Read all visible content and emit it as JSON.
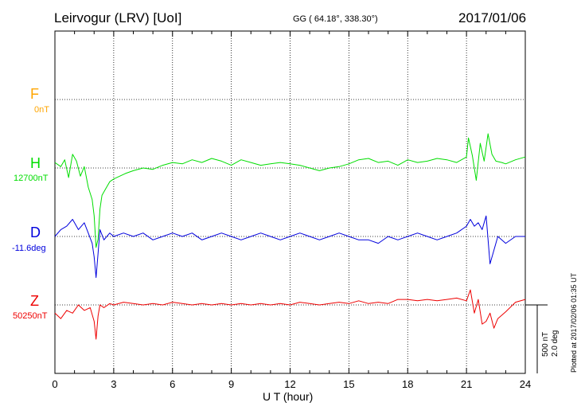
{
  "header": {
    "station": "Leirvogur (LRV)  [UoI]",
    "coords": "GG ( 64.18°, 338.30°)",
    "date": "2017/01/06"
  },
  "plotted_note": "Plotted at 2017/02/06 01:35 UT",
  "scale": {
    "nt": "500 nT",
    "deg": "2.0 deg"
  },
  "colors": {
    "F": "#ffa500",
    "H": "#00dd00",
    "D": "#0000dd",
    "Z": "#ee0000",
    "grid": "#000000"
  },
  "chart_data": {
    "type": "line",
    "title": "Leirvogur (LRV)  [UoI]",
    "xlabel": "U T (hour)",
    "xlim": [
      0,
      24
    ],
    "xticks": [
      "0",
      "3",
      "6",
      "9",
      "12",
      "15",
      "18",
      "21",
      "24"
    ],
    "grid": true,
    "series": [
      {
        "name": "F",
        "baseline_label": "0nT",
        "x": [],
        "y": []
      },
      {
        "name": "H",
        "baseline_label": "12700nT",
        "x": [
          0,
          0.3,
          0.5,
          0.7,
          0.9,
          1.1,
          1.3,
          1.5,
          1.7,
          1.9,
          2.0,
          2.1,
          2.2,
          2.3,
          2.4,
          2.6,
          2.8,
          3.0,
          3.3,
          3.6,
          4.0,
          4.5,
          5.0,
          5.5,
          6.0,
          6.5,
          7.0,
          7.5,
          8.0,
          8.5,
          9.0,
          9.5,
          10.0,
          10.5,
          11.0,
          11.5,
          12.0,
          12.5,
          13.0,
          13.5,
          14.0,
          14.5,
          15.0,
          15.5,
          16.0,
          16.5,
          17.0,
          17.5,
          18.0,
          18.5,
          19.0,
          19.5,
          20.0,
          20.5,
          21.0,
          21.1,
          21.3,
          21.5,
          21.7,
          21.9,
          22.1,
          22.3,
          22.5,
          22.8,
          23.0,
          23.5,
          24.0
        ],
        "y": [
          40,
          10,
          60,
          -70,
          100,
          50,
          -60,
          10,
          -140,
          -230,
          -350,
          -580,
          -520,
          -300,
          -200,
          -150,
          -100,
          -80,
          -60,
          -40,
          -20,
          0,
          -10,
          20,
          40,
          30,
          60,
          40,
          70,
          50,
          20,
          60,
          40,
          20,
          30,
          40,
          30,
          20,
          0,
          -20,
          0,
          10,
          30,
          60,
          70,
          40,
          50,
          20,
          60,
          40,
          50,
          70,
          60,
          40,
          80,
          220,
          90,
          -90,
          180,
          50,
          250,
          100,
          50,
          40,
          30,
          60,
          80
        ]
      },
      {
        "name": "D",
        "baseline_label": "-11.6deg",
        "x": [
          0,
          0.3,
          0.6,
          0.9,
          1.2,
          1.5,
          1.7,
          1.9,
          2.0,
          2.1,
          2.2,
          2.3,
          2.5,
          2.8,
          3.0,
          3.5,
          4.0,
          4.5,
          5.0,
          5.5,
          6.0,
          6.5,
          7.0,
          7.5,
          8.0,
          8.5,
          9.0,
          9.5,
          10.0,
          10.5,
          11.0,
          11.5,
          12.0,
          12.5,
          13.0,
          13.5,
          14.0,
          14.5,
          15.0,
          15.5,
          16.0,
          16.5,
          17.0,
          17.5,
          18.0,
          18.5,
          19.0,
          19.5,
          20.0,
          20.5,
          21.0,
          21.2,
          21.4,
          21.6,
          21.8,
          22.0,
          22.2,
          22.4,
          22.6,
          23.0,
          23.5,
          24.0
        ],
        "y": [
          0.0,
          0.2,
          0.3,
          0.5,
          0.2,
          0.4,
          0.1,
          -0.2,
          -0.6,
          -1.2,
          -0.5,
          0.2,
          -0.1,
          0.1,
          0.0,
          0.1,
          0.0,
          0.1,
          -0.1,
          0.0,
          0.1,
          0.0,
          0.1,
          -0.1,
          0.0,
          0.1,
          0.0,
          -0.1,
          0.0,
          0.1,
          0.0,
          -0.1,
          0.0,
          0.1,
          0.0,
          -0.1,
          0.0,
          0.1,
          0.0,
          -0.1,
          -0.1,
          -0.2,
          0.0,
          -0.1,
          0.0,
          0.1,
          0.0,
          -0.1,
          0.0,
          0.1,
          0.3,
          0.5,
          0.3,
          0.4,
          0.2,
          0.6,
          -0.8,
          -0.4,
          0.0,
          -0.2,
          0.0,
          0.0
        ]
      },
      {
        "name": "Z",
        "baseline_label": "50250nT",
        "x": [
          0,
          0.3,
          0.6,
          0.9,
          1.2,
          1.5,
          1.8,
          2.0,
          2.1,
          2.2,
          2.3,
          2.5,
          2.8,
          3.0,
          3.5,
          4.0,
          4.5,
          5.0,
          5.5,
          6.0,
          6.5,
          7.0,
          7.5,
          8.0,
          8.5,
          9.0,
          9.5,
          10.0,
          10.5,
          11.0,
          11.5,
          12.0,
          12.5,
          13.0,
          13.5,
          14.0,
          14.5,
          15.0,
          15.5,
          16.0,
          16.5,
          17.0,
          17.5,
          18.0,
          18.5,
          19.0,
          19.5,
          20.0,
          20.5,
          21.0,
          21.2,
          21.4,
          21.6,
          21.8,
          22.0,
          22.2,
          22.4,
          22.6,
          23.0,
          23.5,
          24.0
        ],
        "y": [
          -60,
          -100,
          -40,
          -60,
          0,
          -40,
          -20,
          -120,
          -250,
          -80,
          0,
          -20,
          10,
          0,
          20,
          10,
          0,
          10,
          0,
          20,
          10,
          0,
          10,
          0,
          10,
          0,
          10,
          0,
          10,
          0,
          10,
          0,
          20,
          10,
          0,
          10,
          20,
          10,
          30,
          10,
          20,
          10,
          40,
          40,
          30,
          40,
          30,
          40,
          50,
          30,
          110,
          -60,
          40,
          -140,
          -120,
          -60,
          -170,
          -100,
          -50,
          20,
          40
        ]
      }
    ]
  }
}
